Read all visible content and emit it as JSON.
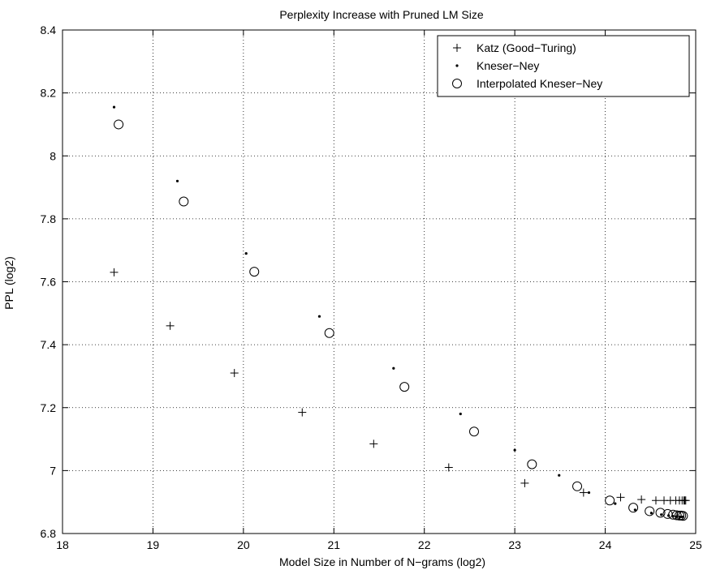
{
  "chart_data": {
    "type": "scatter",
    "title": "Perplexity Increase with Pruned LM Size",
    "xlabel": "Model Size in Number of N−grams (log2)",
    "ylabel": "PPL (log2)",
    "xlim": [
      18,
      25
    ],
    "ylim": [
      6.8,
      8.4
    ],
    "xticks": [
      "18",
      "19",
      "20",
      "21",
      "22",
      "23",
      "24",
      "25"
    ],
    "yticks": [
      "6.8",
      "7",
      "7.2",
      "7.4",
      "7.6",
      "7.8",
      "8",
      "8.2",
      "8.4"
    ],
    "grid": true,
    "legend_position": "top-right",
    "series": [
      {
        "name": "Katz (Good−Turing)",
        "marker": "plus",
        "x": [
          18.57,
          19.19,
          19.9,
          20.65,
          21.44,
          22.27,
          23.11,
          23.76,
          24.17,
          24.4,
          24.56,
          24.65,
          24.72,
          24.78,
          24.82,
          24.85,
          24.87,
          24.88,
          24.89
        ],
        "y": [
          7.63,
          7.46,
          7.31,
          7.185,
          7.085,
          7.01,
          6.96,
          6.93,
          6.915,
          6.908,
          6.905,
          6.905,
          6.905,
          6.905,
          6.905,
          6.905,
          6.905,
          6.905,
          6.905
        ]
      },
      {
        "name": "Kneser−Ney",
        "marker": "dot",
        "x": [
          18.57,
          19.27,
          20.03,
          20.84,
          21.66,
          22.4,
          23.0,
          23.49,
          23.82,
          24.11,
          24.33,
          24.51,
          24.62,
          24.7,
          24.75,
          24.79,
          24.82,
          24.84,
          24.86
        ],
        "y": [
          8.155,
          7.92,
          7.69,
          7.49,
          7.325,
          7.18,
          7.065,
          6.985,
          6.93,
          6.895,
          6.875,
          6.865,
          6.86,
          6.857,
          6.855,
          6.854,
          6.853,
          6.853,
          6.853
        ]
      },
      {
        "name": "Interpolated Kneser−Ney",
        "marker": "circle",
        "x": [
          18.62,
          19.34,
          20.12,
          20.95,
          21.78,
          22.55,
          23.19,
          23.69,
          24.05,
          24.31,
          24.49,
          24.61,
          24.69,
          24.75,
          24.79,
          24.82,
          24.84,
          24.86
        ],
        "y": [
          8.1,
          7.855,
          7.632,
          7.437,
          7.266,
          7.124,
          7.02,
          6.95,
          6.905,
          6.882,
          6.871,
          6.866,
          6.862,
          6.86,
          6.858,
          6.857,
          6.857,
          6.856
        ]
      }
    ]
  }
}
